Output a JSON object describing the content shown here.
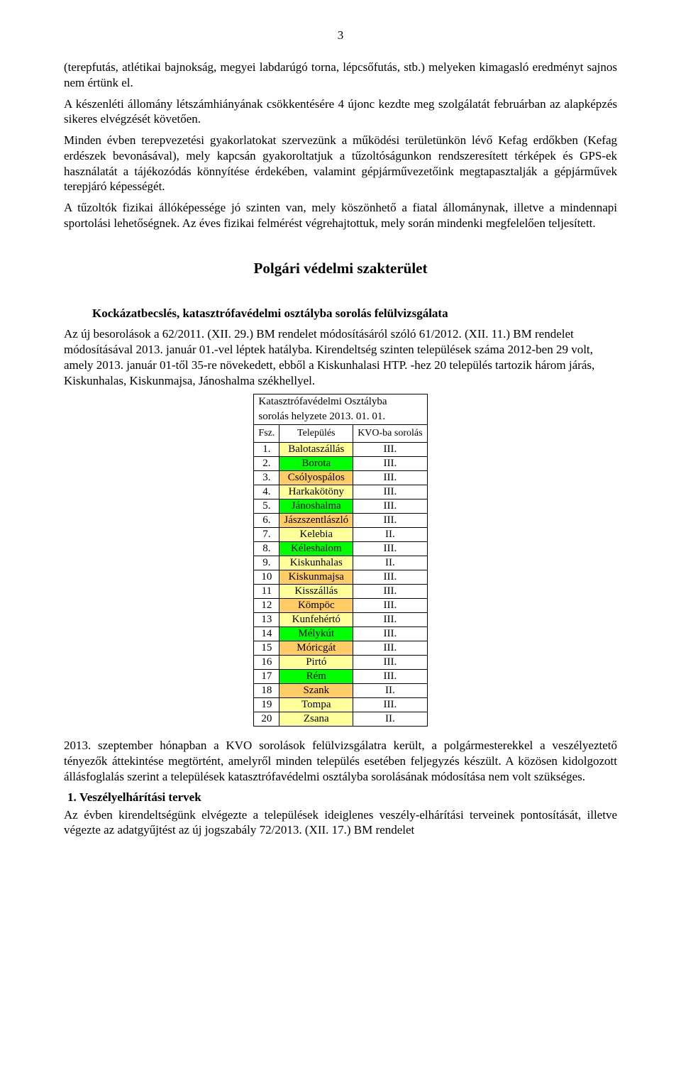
{
  "page_number": "3",
  "paragraphs": {
    "p1": "(terepfutás, atlétikai bajnokság, megyei labdarúgó torna, lépcsőfutás, stb.) melyeken kimagasló eredményt sajnos nem értünk el.",
    "p2": "A készenléti állomány létszámhiányának csökkentésére 4 újonc kezdte meg szolgálatát februárban az alapképzés sikeres elvégzését követően.",
    "p3": "Minden évben terepvezetési gyakorlatokat szervezünk a működési területünkön lévő Kefag erdőkben (Kefag erdészek bevonásával), mely kapcsán gyakoroltatjuk a tűzoltóságunkon rendszeresített térképek és GPS-ek használatát a tájékozódás könnyítése érdekében, valamint gépjárművezetőink megtapasztalják a gépjárművek terepjáró képességét.",
    "p4": "A tűzoltók fizikai állóképessége jó szinten van, mely köszönhető a fiatal állománynak, illetve a mindennapi sportolási lehetőségnek. Az éves fizikai felmérést végrehajtottuk, mely során mindenki megfelelően teljesített."
  },
  "section_title": "Polgári védelmi szakterület",
  "subsection": {
    "heading": "Kockázatbecslés, katasztrófavédelmi osztályba sorolás felülvizsgálata",
    "body": "Az új besorolások a 62/2011. (XII. 29.) BM rendelet módosításáról szóló 61/2012. (XII. 11.) BM rendelet módosításával 2013. január 01.-vel léptek hatályba. Kirendeltség szinten települések száma 2012-ben 29 volt, amely 2013. január 01-től 35-re növekedett, ebből a Kiskunhalasi HTP. -hez 20 település tartozik három járás, Kiskunhalas, Kiskunmajsa, Jánoshalma székhellyel."
  },
  "table": {
    "title_line1": "Katasztrófavédelmi Osztályba",
    "title_line2": "sorolás helyzete 2013. 01. 01.",
    "headers": {
      "col1": "Fsz.",
      "col2": "Település",
      "col3": "KVO-ba sorolás"
    },
    "colors": {
      "yellow": "#ffff99",
      "green": "#00ff00",
      "orange": "#ffcc66"
    },
    "rows": [
      {
        "n": "1.",
        "name": "Balotaszállás",
        "cls": "III.",
        "color": "yellow"
      },
      {
        "n": "2.",
        "name": "Borota",
        "cls": "III.",
        "color": "green"
      },
      {
        "n": "3.",
        "name": "Csólyospálos",
        "cls": "III.",
        "color": "orange"
      },
      {
        "n": "4.",
        "name": "Harkakötöny",
        "cls": "III.",
        "color": "yellow"
      },
      {
        "n": "5.",
        "name": "Jánoshalma",
        "cls": "III.",
        "color": "green"
      },
      {
        "n": "6.",
        "name": "Jászszentlászló",
        "cls": "III.",
        "color": "orange"
      },
      {
        "n": "7.",
        "name": "Kelebia",
        "cls": "II.",
        "color": "yellow"
      },
      {
        "n": "8.",
        "name": "Kéleshalom",
        "cls": "III.",
        "color": "green"
      },
      {
        "n": "9.",
        "name": "Kiskunhalas",
        "cls": "II.",
        "color": "yellow"
      },
      {
        "n": "10",
        "name": "Kiskunmajsa",
        "cls": "III.",
        "color": "orange"
      },
      {
        "n": "11",
        "name": "Kisszállás",
        "cls": "III.",
        "color": "yellow"
      },
      {
        "n": "12",
        "name": "Kömpöc",
        "cls": "III.",
        "color": "orange"
      },
      {
        "n": "13",
        "name": "Kunfehértó",
        "cls": "III.",
        "color": "yellow"
      },
      {
        "n": "14",
        "name": "Mélykút",
        "cls": "III.",
        "color": "green"
      },
      {
        "n": "15",
        "name": "Móricgát",
        "cls": "III.",
        "color": "orange"
      },
      {
        "n": "16",
        "name": "Pirtó",
        "cls": "III.",
        "color": "yellow"
      },
      {
        "n": "17",
        "name": "Rém",
        "cls": "III.",
        "color": "green"
      },
      {
        "n": "18",
        "name": "Szank",
        "cls": "II.",
        "color": "orange"
      },
      {
        "n": "19",
        "name": "Tompa",
        "cls": "III.",
        "color": "yellow"
      },
      {
        "n": "20",
        "name": "Zsana",
        "cls": "II.",
        "color": "yellow"
      }
    ]
  },
  "after_table": {
    "p1": "2013. szeptember hónapban a KVO sorolások felülvizsgálatra került, a polgármesterekkel a veszélyeztető tényezők áttekintése megtörtént, amelyről minden település esetében feljegyzés készült. A közösen kidolgozott állásfoglalás szerint a települések katasztrófavédelmi osztályba sorolásának módosítása nem volt szükséges."
  },
  "list": {
    "item1": "Veszélyelhárítási tervek",
    "item1_body": "Az évben kirendeltségünk elvégezte a települések ideiglenes veszély-elhárítási terveinek pontosítását, illetve végezte az adatgyűjtést az új jogszabály 72/2013. (XII. 17.) BM rendelet"
  }
}
